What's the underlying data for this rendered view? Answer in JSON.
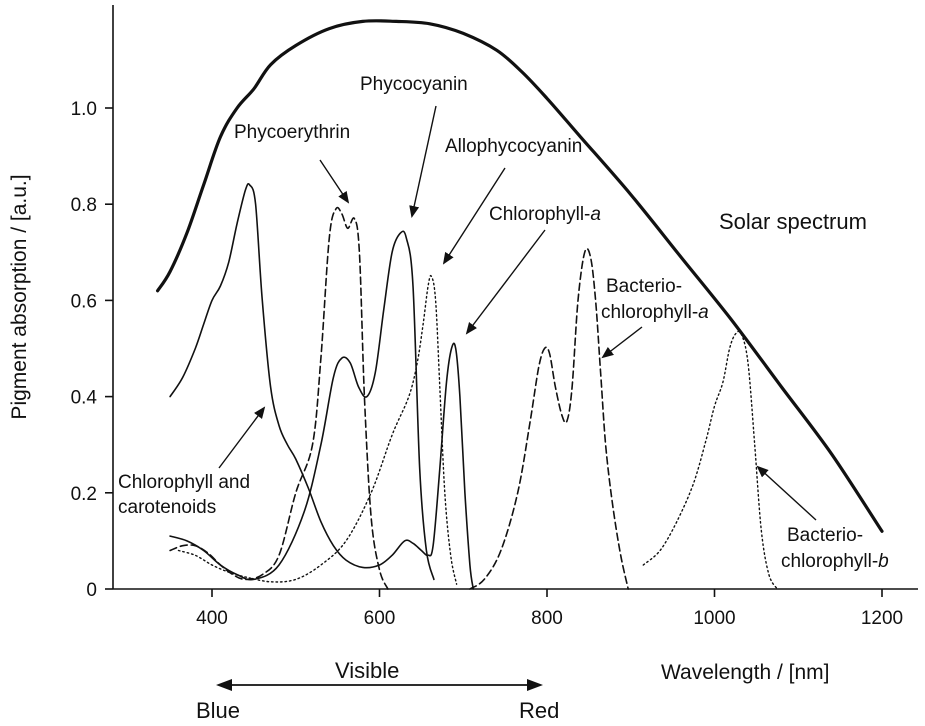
{
  "chart_data": {
    "type": "line",
    "title": "",
    "xlabel": "Wavelength / [nm]",
    "ylabel": "Pigment absorption / [a.u.]",
    "xlim": [
      290,
      1240
    ],
    "ylim": [
      0,
      1.2
    ],
    "x_ticks": [
      {
        "value": 400,
        "label": "400"
      },
      {
        "value": 600,
        "label": "600"
      },
      {
        "value": 800,
        "label": "800"
      },
      {
        "value": 1000,
        "label": "1000"
      },
      {
        "value": 1200,
        "label": "1200"
      }
    ],
    "y_ticks": [
      {
        "value": 0,
        "label": "0"
      },
      {
        "value": 0.2,
        "label": "0.2"
      },
      {
        "value": 0.4,
        "label": "0.4"
      },
      {
        "value": 0.6,
        "label": "0.6"
      },
      {
        "value": 0.8,
        "label": "0.8"
      },
      {
        "value": 1.0,
        "label": "1.0"
      }
    ],
    "grid": false,
    "legend": "none",
    "series": [
      {
        "name": "Solar spectrum",
        "style": "solid",
        "width": 3.2,
        "points": [
          [
            335,
            0.62
          ],
          [
            350,
            0.66
          ],
          [
            370,
            0.74
          ],
          [
            390,
            0.84
          ],
          [
            410,
            0.94
          ],
          [
            430,
            1.0
          ],
          [
            450,
            1.04
          ],
          [
            470,
            1.09
          ],
          [
            500,
            1.13
          ],
          [
            540,
            1.165
          ],
          [
            580,
            1.18
          ],
          [
            620,
            1.18
          ],
          [
            660,
            1.175
          ],
          [
            700,
            1.155
          ],
          [
            740,
            1.12
          ],
          [
            770,
            1.075
          ],
          [
            800,
            1.02
          ],
          [
            840,
            0.94
          ],
          [
            900,
            0.82
          ],
          [
            960,
            0.69
          ],
          [
            1020,
            0.56
          ],
          [
            1080,
            0.42
          ],
          [
            1140,
            0.28
          ],
          [
            1200,
            0.12
          ]
        ]
      },
      {
        "name": "Chlorophyll and carotenoids",
        "style": "solid",
        "width": 1.6,
        "points": [
          [
            350,
            0.4
          ],
          [
            365,
            0.44
          ],
          [
            380,
            0.5
          ],
          [
            390,
            0.55
          ],
          [
            400,
            0.6
          ],
          [
            410,
            0.63
          ],
          [
            420,
            0.68
          ],
          [
            430,
            0.76
          ],
          [
            440,
            0.83
          ],
          [
            445,
            0.84
          ],
          [
            452,
            0.8
          ],
          [
            460,
            0.6
          ],
          [
            470,
            0.42
          ],
          [
            480,
            0.34
          ],
          [
            490,
            0.3
          ],
          [
            500,
            0.27
          ],
          [
            515,
            0.21
          ],
          [
            530,
            0.14
          ],
          [
            545,
            0.09
          ],
          [
            560,
            0.06
          ],
          [
            580,
            0.045
          ],
          [
            600,
            0.05
          ],
          [
            615,
            0.07
          ],
          [
            630,
            0.1
          ],
          [
            640,
            0.095
          ],
          [
            650,
            0.08
          ],
          [
            658,
            0.07
          ],
          [
            664,
            0.09
          ],
          [
            672,
            0.25
          ],
          [
            680,
            0.43
          ],
          [
            686,
            0.5
          ],
          [
            691,
            0.5
          ],
          [
            696,
            0.4
          ],
          [
            702,
            0.2
          ],
          [
            708,
            0.05
          ],
          [
            712,
            0.0
          ]
        ]
      },
      {
        "name": "Phycoerythrin",
        "style": "dashed",
        "width": 1.6,
        "points": [
          [
            350,
            0.08
          ],
          [
            365,
            0.09
          ],
          [
            380,
            0.09
          ],
          [
            395,
            0.075
          ],
          [
            410,
            0.05
          ],
          [
            425,
            0.03
          ],
          [
            440,
            0.02
          ],
          [
            460,
            0.03
          ],
          [
            480,
            0.07
          ],
          [
            500,
            0.2
          ],
          [
            520,
            0.3
          ],
          [
            530,
            0.48
          ],
          [
            540,
            0.73
          ],
          [
            548,
            0.79
          ],
          [
            555,
            0.78
          ],
          [
            562,
            0.75
          ],
          [
            570,
            0.77
          ],
          [
            576,
            0.7
          ],
          [
            582,
            0.4
          ],
          [
            590,
            0.15
          ],
          [
            600,
            0.04
          ],
          [
            610,
            0.0
          ]
        ]
      },
      {
        "name": "Phycocyanin",
        "style": "solid",
        "width": 1.6,
        "points": [
          [
            350,
            0.11
          ],
          [
            370,
            0.1
          ],
          [
            390,
            0.08
          ],
          [
            410,
            0.05
          ],
          [
            430,
            0.03
          ],
          [
            450,
            0.02
          ],
          [
            480,
            0.05
          ],
          [
            510,
            0.16
          ],
          [
            530,
            0.3
          ],
          [
            545,
            0.44
          ],
          [
            555,
            0.48
          ],
          [
            565,
            0.47
          ],
          [
            575,
            0.42
          ],
          [
            585,
            0.4
          ],
          [
            595,
            0.45
          ],
          [
            605,
            0.58
          ],
          [
            615,
            0.7
          ],
          [
            625,
            0.74
          ],
          [
            632,
            0.73
          ],
          [
            640,
            0.63
          ],
          [
            648,
            0.25
          ],
          [
            656,
            0.08
          ],
          [
            665,
            0.02
          ]
        ]
      },
      {
        "name": "Allophycocyanin",
        "style": "dotted",
        "width": 1.4,
        "points": [
          [
            360,
            0.08
          ],
          [
            380,
            0.07
          ],
          [
            400,
            0.05
          ],
          [
            420,
            0.035
          ],
          [
            440,
            0.025
          ],
          [
            470,
            0.015
          ],
          [
            500,
            0.02
          ],
          [
            530,
            0.05
          ],
          [
            560,
            0.1
          ],
          [
            590,
            0.2
          ],
          [
            615,
            0.32
          ],
          [
            635,
            0.4
          ],
          [
            645,
            0.47
          ],
          [
            652,
            0.55
          ],
          [
            658,
            0.63
          ],
          [
            662,
            0.65
          ],
          [
            667,
            0.6
          ],
          [
            672,
            0.42
          ],
          [
            678,
            0.2
          ],
          [
            685,
            0.07
          ],
          [
            692,
            0.01
          ]
        ]
      },
      {
        "name": "Bacteriochlorophyll-a",
        "style": "dashed",
        "width": 1.6,
        "points": [
          [
            708,
            0.0
          ],
          [
            725,
            0.02
          ],
          [
            745,
            0.08
          ],
          [
            765,
            0.2
          ],
          [
            780,
            0.35
          ],
          [
            790,
            0.46
          ],
          [
            797,
            0.5
          ],
          [
            803,
            0.49
          ],
          [
            810,
            0.42
          ],
          [
            818,
            0.36
          ],
          [
            824,
            0.35
          ],
          [
            830,
            0.42
          ],
          [
            837,
            0.6
          ],
          [
            845,
            0.7
          ],
          [
            852,
            0.69
          ],
          [
            858,
            0.6
          ],
          [
            864,
            0.45
          ],
          [
            870,
            0.3
          ],
          [
            878,
            0.18
          ],
          [
            888,
            0.07
          ],
          [
            897,
            0.0
          ]
        ]
      },
      {
        "name": "Bacteriochlorophyll-b",
        "style": "dotted",
        "width": 1.4,
        "points": [
          [
            915,
            0.05
          ],
          [
            935,
            0.08
          ],
          [
            955,
            0.14
          ],
          [
            975,
            0.22
          ],
          [
            990,
            0.31
          ],
          [
            1000,
            0.38
          ],
          [
            1010,
            0.43
          ],
          [
            1018,
            0.5
          ],
          [
            1025,
            0.53
          ],
          [
            1032,
            0.53
          ],
          [
            1040,
            0.47
          ],
          [
            1048,
            0.3
          ],
          [
            1056,
            0.12
          ],
          [
            1065,
            0.03
          ],
          [
            1075,
            0.0
          ]
        ]
      }
    ],
    "annotations": {
      "phycoerythrin": "Phycoerythrin",
      "phycocyanin": "Phycocyanin",
      "allophycocyanin": "Allophycocyanin",
      "chlorophyll_a_prefix": "Chlorophyll-",
      "chlorophyll_a_italic": "a",
      "solar": "Solar spectrum",
      "bchl_a_line1": "Bacterio-",
      "bchl_a_line2_prefix": "chlorophyll-",
      "bchl_a_line2_italic": "a",
      "bchl_b_line1": "Bacterio-",
      "bchl_b_line2_prefix": "chlorophyll-",
      "bchl_b_line2_italic": "b",
      "chl_car_line1": "Chlorophyll and",
      "chl_car_line2": "carotenoids",
      "visible": "Visible",
      "blue": "Blue",
      "red": "Red"
    }
  }
}
